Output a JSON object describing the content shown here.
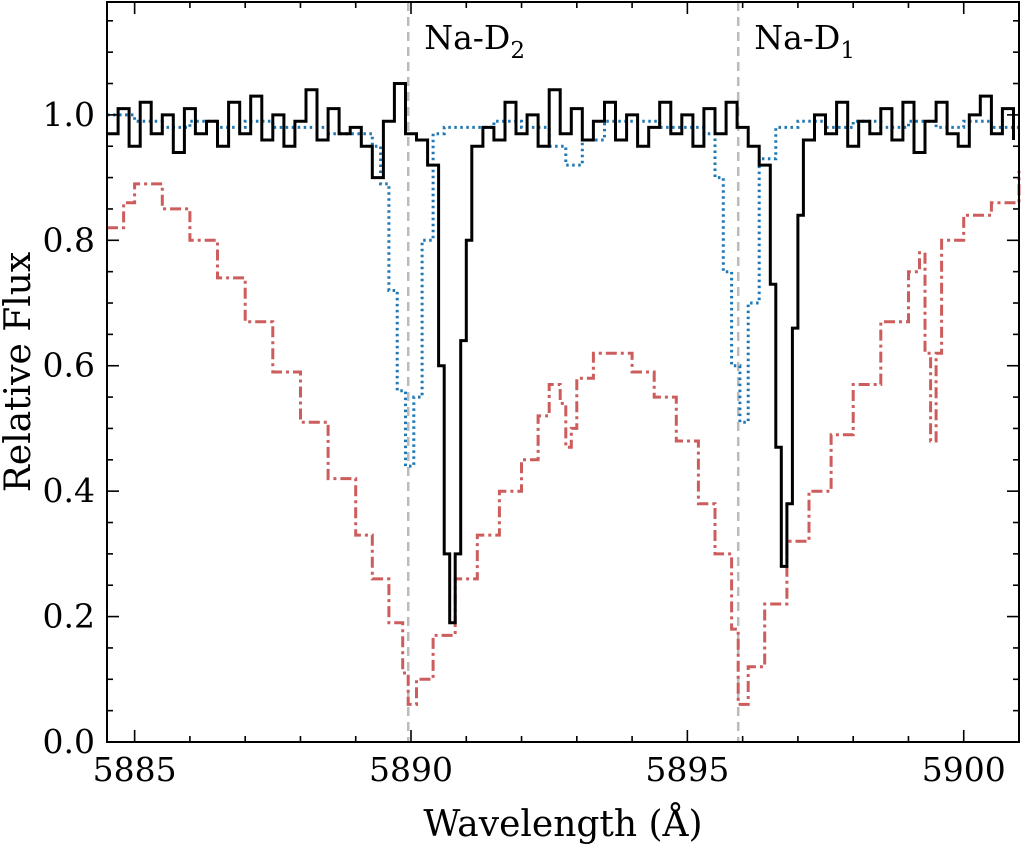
{
  "chart_data": {
    "type": "line",
    "xlabel": "Wavelength (Å)",
    "ylabel": "Relative Flux",
    "xlim": [
      5884.5,
      5901.0
    ],
    "ylim": [
      0.0,
      1.18
    ],
    "xticks": [
      5885,
      5890,
      5895,
      5900
    ],
    "xtick_labels": [
      "5885",
      "5890",
      "5895",
      "5900"
    ],
    "yticks": [
      0.0,
      0.2,
      0.4,
      0.6,
      0.8,
      1.0
    ],
    "ytick_labels": [
      "0.0",
      "0.2",
      "0.4",
      "0.6",
      "0.8",
      "1.0"
    ],
    "grid": false,
    "vlines": [
      {
        "x": 5889.95,
        "label": "Na-D",
        "subscript": "2",
        "color": "#bbbbbb"
      },
      {
        "x": 5895.92,
        "label": "Na-D",
        "subscript": "1",
        "color": "#bbbbbb"
      }
    ],
    "series": [
      {
        "name": "dash-dot (red)",
        "style": "dashdot",
        "color": "#cd5c5c",
        "x": [
          5884.5,
          5884.8,
          5885.0,
          5885.5,
          5886.0,
          5886.5,
          5887.0,
          5887.5,
          5888.0,
          5888.5,
          5889.0,
          5889.3,
          5889.6,
          5889.85,
          5889.95,
          5890.1,
          5890.4,
          5890.8,
          5891.2,
          5891.6,
          5892.0,
          5892.3,
          5892.5,
          5892.7,
          5892.8,
          5892.9,
          5893.0,
          5893.3,
          5893.6,
          5894.0,
          5894.4,
          5894.8,
          5895.2,
          5895.5,
          5895.8,
          5895.92,
          5896.1,
          5896.4,
          5896.8,
          5897.2,
          5897.6,
          5898.0,
          5898.5,
          5899.0,
          5899.2,
          5899.3,
          5899.4,
          5899.5,
          5899.6,
          5900.0,
          5900.5,
          5901.0
        ],
        "y": [
          0.82,
          0.86,
          0.89,
          0.85,
          0.8,
          0.74,
          0.67,
          0.59,
          0.51,
          0.42,
          0.33,
          0.26,
          0.19,
          0.11,
          0.06,
          0.1,
          0.17,
          0.26,
          0.33,
          0.4,
          0.45,
          0.52,
          0.57,
          0.54,
          0.47,
          0.5,
          0.58,
          0.62,
          0.62,
          0.59,
          0.55,
          0.48,
          0.38,
          0.3,
          0.18,
          0.06,
          0.12,
          0.22,
          0.32,
          0.4,
          0.49,
          0.57,
          0.67,
          0.75,
          0.78,
          0.62,
          0.48,
          0.62,
          0.8,
          0.84,
          0.86,
          0.91
        ]
      },
      {
        "name": "dotted (blue)",
        "style": "dotted",
        "color": "#1f77b4",
        "x": [
          5884.5,
          5885.0,
          5885.5,
          5886.0,
          5886.5,
          5887.0,
          5887.5,
          5888.0,
          5888.5,
          5889.0,
          5889.3,
          5889.45,
          5889.6,
          5889.75,
          5889.9,
          5890.05,
          5890.2,
          5890.4,
          5890.6,
          5891.0,
          5891.5,
          5892.0,
          5892.5,
          5892.8,
          5893.1,
          5893.5,
          5894.0,
          5894.5,
          5895.0,
          5895.3,
          5895.5,
          5895.65,
          5895.8,
          5895.95,
          5896.1,
          5896.3,
          5896.6,
          5897.0,
          5897.5,
          5898.0,
          5898.5,
          5899.0,
          5899.5,
          5900.0,
          5900.5,
          5901.0
        ],
        "y": [
          1.0,
          0.99,
          0.98,
          0.99,
          0.98,
          0.99,
          0.98,
          0.98,
          0.97,
          0.97,
          0.95,
          0.89,
          0.72,
          0.56,
          0.44,
          0.55,
          0.8,
          0.97,
          0.98,
          0.98,
          0.99,
          0.98,
          0.95,
          0.92,
          0.96,
          0.99,
          0.99,
          0.98,
          0.98,
          0.97,
          0.9,
          0.75,
          0.6,
          0.51,
          0.7,
          0.93,
          0.98,
          0.99,
          0.98,
          0.99,
          0.98,
          0.99,
          0.98,
          0.99,
          0.98,
          0.98
        ]
      },
      {
        "name": "solid (black)",
        "style": "steps",
        "color": "#000000",
        "x": [
          5884.5,
          5884.7,
          5884.9,
          5885.1,
          5885.3,
          5885.5,
          5885.7,
          5885.9,
          5886.1,
          5886.3,
          5886.5,
          5886.7,
          5886.9,
          5887.1,
          5887.3,
          5887.5,
          5887.7,
          5887.9,
          5888.1,
          5888.3,
          5888.5,
          5888.7,
          5888.9,
          5889.1,
          5889.3,
          5889.5,
          5889.7,
          5889.9,
          5890.1,
          5890.3,
          5890.5,
          5890.6,
          5890.7,
          5890.8,
          5890.9,
          5891.0,
          5891.1,
          5891.3,
          5891.5,
          5891.7,
          5891.9,
          5892.1,
          5892.3,
          5892.5,
          5892.7,
          5892.9,
          5893.1,
          5893.3,
          5893.5,
          5893.7,
          5893.9,
          5894.1,
          5894.3,
          5894.5,
          5894.7,
          5894.9,
          5895.1,
          5895.3,
          5895.5,
          5895.7,
          5895.9,
          5896.1,
          5896.3,
          5896.5,
          5896.6,
          5896.7,
          5896.8,
          5896.9,
          5897.0,
          5897.1,
          5897.3,
          5897.5,
          5897.7,
          5897.9,
          5898.1,
          5898.3,
          5898.5,
          5898.7,
          5898.9,
          5899.1,
          5899.3,
          5899.5,
          5899.7,
          5899.9,
          5900.1,
          5900.3,
          5900.5,
          5900.7,
          5900.9
        ],
        "y": [
          0.97,
          1.01,
          0.95,
          1.02,
          0.97,
          1.0,
          0.94,
          1.01,
          0.97,
          0.99,
          0.95,
          1.02,
          0.97,
          1.03,
          0.96,
          1.0,
          0.95,
          0.99,
          1.04,
          0.96,
          1.01,
          0.97,
          0.98,
          0.95,
          0.9,
          0.99,
          1.05,
          0.97,
          0.96,
          0.92,
          0.6,
          0.3,
          0.19,
          0.3,
          0.64,
          0.8,
          0.95,
          0.98,
          0.96,
          1.02,
          0.97,
          1.0,
          0.95,
          1.04,
          0.97,
          1.01,
          0.96,
          0.99,
          1.02,
          0.96,
          1.0,
          0.95,
          0.98,
          1.02,
          0.97,
          1.0,
          0.95,
          1.01,
          0.97,
          1.02,
          0.98,
          0.95,
          0.92,
          0.73,
          0.47,
          0.28,
          0.38,
          0.66,
          0.84,
          0.96,
          1.0,
          0.97,
          1.02,
          0.95,
          0.99,
          0.97,
          1.01,
          0.96,
          1.02,
          0.94,
          0.99,
          1.02,
          0.97,
          0.95,
          1.0,
          1.03,
          0.97,
          1.01,
          0.96
        ]
      }
    ]
  }
}
